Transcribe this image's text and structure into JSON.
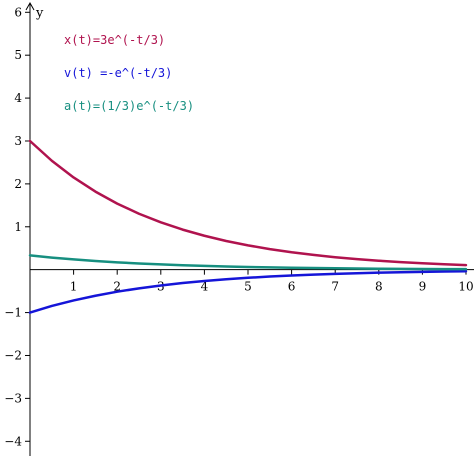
{
  "chart_data": {
    "type": "line",
    "x_axis": {
      "label": "",
      "range": [
        0,
        10
      ],
      "ticks": [
        1,
        2,
        3,
        4,
        5,
        6,
        7,
        8,
        9,
        10
      ]
    },
    "y_axis": {
      "label": "y",
      "range": [
        -4.25,
        6.1
      ],
      "ticks": [
        -4,
        -3,
        -2,
        -1,
        1,
        2,
        3,
        4,
        5,
        6
      ]
    },
    "grid": false,
    "legend_placement": "top-left",
    "x_samples": [
      0,
      0.5,
      1,
      1.5,
      2,
      2.5,
      3,
      3.5,
      4,
      4.5,
      5,
      5.5,
      6,
      6.5,
      7,
      7.5,
      8,
      8.5,
      9,
      9.5,
      10
    ],
    "series": [
      {
        "name": "x(t)=3e^(-t/3)",
        "color": "#b0134e",
        "values": [
          3.0,
          2.539,
          2.15,
          1.82,
          1.54,
          1.304,
          1.104,
          0.934,
          0.791,
          0.669,
          0.567,
          0.48,
          0.406,
          0.344,
          0.291,
          0.246,
          0.209,
          0.176,
          0.149,
          0.126,
          0.107
        ]
      },
      {
        "name": "v(t) =-e^(-t/3)",
        "color": "#1515d8",
        "values": [
          -1.0,
          -0.846,
          -0.717,
          -0.607,
          -0.513,
          -0.435,
          -0.368,
          -0.311,
          -0.264,
          -0.223,
          -0.189,
          -0.16,
          -0.135,
          -0.115,
          -0.097,
          -0.082,
          -0.07,
          -0.059,
          -0.05,
          -0.042,
          -0.036
        ]
      },
      {
        "name": "a(t)=(1/3)e^(-t/3)",
        "color": "#178f80",
        "values": [
          0.333,
          0.282,
          0.239,
          0.202,
          0.171,
          0.145,
          0.123,
          0.104,
          0.088,
          0.074,
          0.063,
          0.053,
          0.045,
          0.038,
          0.032,
          0.027,
          0.023,
          0.02,
          0.017,
          0.014,
          0.012
        ]
      }
    ]
  }
}
